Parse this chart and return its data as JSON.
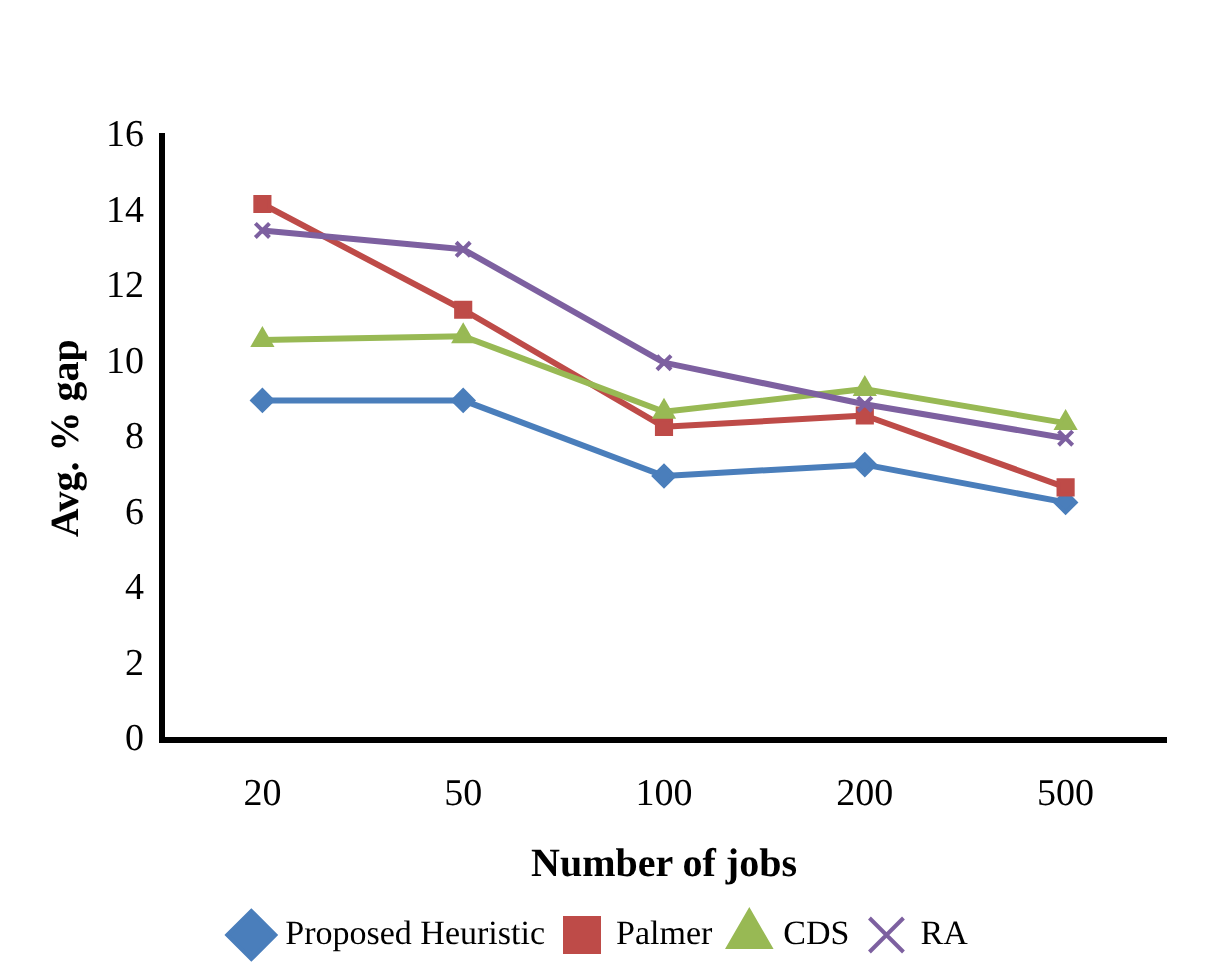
{
  "chart_data": {
    "type": "line",
    "xlabel": "Number of jobs",
    "ylabel": "Avg. % gap",
    "categories": [
      "20",
      "50",
      "100",
      "200",
      "500"
    ],
    "series": [
      {
        "name": "Proposed Heuristic",
        "color": "#4a7ebb",
        "marker": "diamond",
        "values": [
          9.0,
          9.0,
          7.0,
          7.3,
          6.3
        ]
      },
      {
        "name": "Palmer",
        "color": "#be4b48",
        "marker": "square",
        "values": [
          14.2,
          11.4,
          8.3,
          8.6,
          6.7
        ]
      },
      {
        "name": "CDS",
        "color": "#98b954",
        "marker": "triangle",
        "values": [
          10.6,
          10.7,
          8.7,
          9.3,
          8.4
        ]
      },
      {
        "name": "RA",
        "color": "#7d60a0",
        "marker": "cross",
        "values": [
          13.5,
          13.0,
          10.0,
          8.9,
          8.0
        ]
      }
    ],
    "ylim": [
      0,
      16
    ],
    "yticks": [
      0,
      2,
      4,
      6,
      8,
      10,
      12,
      14,
      16
    ],
    "grid": false,
    "legend": "bottom",
    "line_style": "solid"
  }
}
